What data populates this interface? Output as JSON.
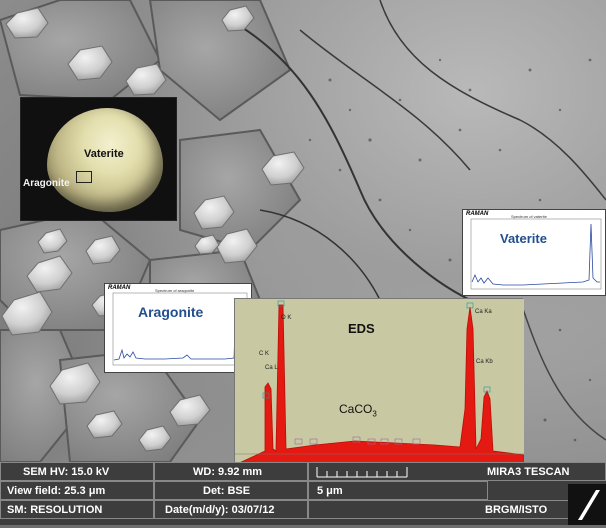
{
  "photo": {
    "label_main": "Vaterite",
    "label_side": "Aragonite"
  },
  "raman_aragonite": {
    "header": "RAMAN",
    "subtitle": "Spectrum of aragonite",
    "name": "Aragonite"
  },
  "raman_vaterite": {
    "header": "RAMAN",
    "subtitle": "Spectrum of vaterite",
    "name": "Vaterite"
  },
  "eds": {
    "title": "EDS",
    "compound_base": "CaCO",
    "compound_sub": "3",
    "peak_labels": [
      "C K",
      "Ca L",
      "O K",
      "Ca Ka",
      "Ca Kb"
    ]
  },
  "infobar": {
    "sem_hv": "SEM HV: 15.0 kV",
    "wd": "WD: 9.92 mm",
    "instrument": "MIRA3 TESCAN",
    "view_field": "View field: 25.3 μm",
    "det": "Det: BSE",
    "scale": "5 μm",
    "sm": "SM: RESOLUTION",
    "date": "Date(m/d/y): 03/07/12",
    "org": "BRGM/ISTO"
  },
  "colors": {
    "spectrum_red": "#e41a12",
    "raman_blue": "#234f8f",
    "eds_bg": "#c8c8a2"
  }
}
